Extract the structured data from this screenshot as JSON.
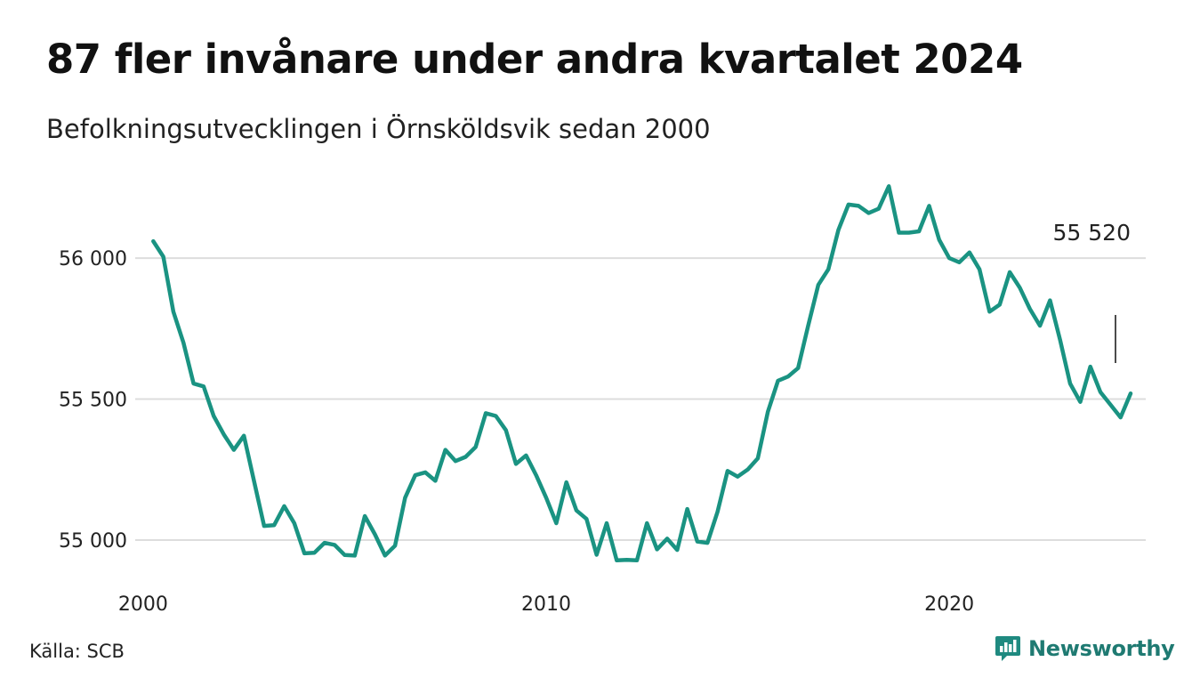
{
  "title": "87 fler invånare under andra kvartalet 2024",
  "subtitle": "Befolkningsutvecklingen i Örnsköldsvik sedan 2000",
  "source": "Källa: SCB",
  "brand": {
    "name": "Newsworthy",
    "icon": "newsworthy-logo-icon",
    "color": "#1f8a80"
  },
  "colors": {
    "line": "#1a9382",
    "grid": "#dddddd"
  },
  "chart_data": {
    "type": "line",
    "title": "87 fler invånare under andra kvartalet 2024",
    "subtitle": "Befolkningsutvecklingen i Örnsköldsvik sedan 2000",
    "xlabel": "",
    "ylabel": "",
    "x_ticks": [
      {
        "value": 2000,
        "label": "2000"
      },
      {
        "value": 2010,
        "label": "2010"
      },
      {
        "value": 2020,
        "label": "2020"
      }
    ],
    "y_ticks": [
      {
        "value": 55000,
        "label": "55 000"
      },
      {
        "value": 55500,
        "label": "55 500"
      },
      {
        "value": 56000,
        "label": "56 000"
      }
    ],
    "xlim": [
      1999.825,
      2024.875
    ],
    "ylim": [
      54880,
      56300
    ],
    "grid": "horizontal",
    "end_label": "55 520",
    "x": [
      2000.25,
      2000.5,
      2000.75,
      2001.0,
      2001.25,
      2001.5,
      2001.75,
      2002.0,
      2002.25,
      2002.5,
      2002.75,
      2003.0,
      2003.25,
      2003.5,
      2003.75,
      2004.0,
      2004.25,
      2004.5,
      2004.75,
      2005.0,
      2005.25,
      2005.5,
      2005.75,
      2006.0,
      2006.25,
      2006.5,
      2006.75,
      2007.0,
      2007.25,
      2007.5,
      2007.75,
      2008.0,
      2008.25,
      2008.5,
      2008.75,
      2009.0,
      2009.25,
      2009.5,
      2009.75,
      2010.0,
      2010.25,
      2010.5,
      2010.75,
      2011.0,
      2011.25,
      2011.5,
      2011.75,
      2012.0,
      2012.25,
      2012.5,
      2012.75,
      2013.0,
      2013.25,
      2013.5,
      2013.75,
      2014.0,
      2014.25,
      2014.5,
      2014.75,
      2015.0,
      2015.25,
      2015.5,
      2015.75,
      2016.0,
      2016.25,
      2016.5,
      2016.75,
      2017.0,
      2017.25,
      2017.5,
      2017.75,
      2018.0,
      2018.25,
      2018.5,
      2018.75,
      2019.0,
      2019.25,
      2019.5,
      2019.75,
      2020.0,
      2020.25,
      2020.5,
      2020.75,
      2021.0,
      2021.25,
      2021.5,
      2021.75,
      2022.0,
      2022.25,
      2022.5,
      2022.75,
      2023.0,
      2023.25,
      2023.5,
      2023.75,
      2024.0,
      2024.25,
      2024.5
    ],
    "values": [
      56060,
      56005,
      55810,
      55700,
      55555,
      55545,
      55440,
      55375,
      55320,
      55370,
      55210,
      55050,
      55053,
      55120,
      55060,
      54953,
      54955,
      54990,
      54983,
      54947,
      54945,
      55085,
      55020,
      54945,
      54980,
      55150,
      55230,
      55240,
      55210,
      55320,
      55280,
      55295,
      55330,
      55450,
      55440,
      55390,
      55270,
      55300,
      55230,
      55150,
      55060,
      55205,
      55105,
      55075,
      54948,
      55060,
      54928,
      54930,
      54928,
      55060,
      54967,
      55005,
      54965,
      55110,
      54995,
      54990,
      55100,
      55245,
      55225,
      55250,
      55290,
      55455,
      55565,
      55580,
      55610,
      55760,
      55905,
      55960,
      56100,
      56190,
      56185,
      56160,
      56175,
      56255,
      56090,
      56090,
      56095,
      56185,
      56065,
      56000,
      55985,
      56020,
      55960,
      55810,
      55835,
      55950,
      55895,
      55820,
      55760,
      55850,
      55710,
      55555,
      55490,
      55615,
      55525,
      55480,
      55435,
      55520
    ]
  }
}
